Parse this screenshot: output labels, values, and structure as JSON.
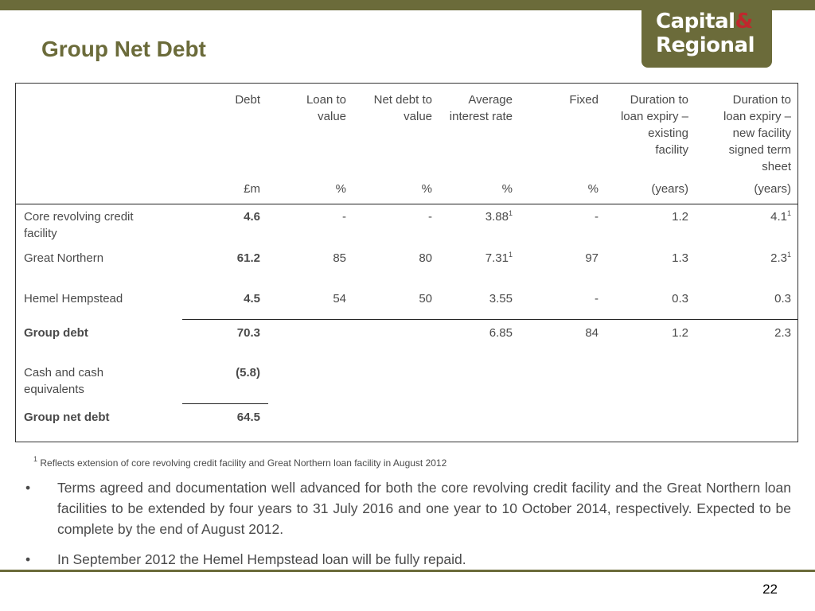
{
  "header": {
    "title": "Group Net Debt",
    "logo": {
      "line1": "Capital",
      "amp": "&",
      "line2": "Regional"
    }
  },
  "table": {
    "columns": [
      {
        "label": "Debt",
        "unit": "£m"
      },
      {
        "label": "Loan to value",
        "unit": "%"
      },
      {
        "label": "Net debt to value",
        "unit": "%"
      },
      {
        "label": "Average interest rate",
        "unit": "%"
      },
      {
        "label": "Fixed",
        "unit": "%"
      },
      {
        "label": "Duration to loan expiry – existing facility",
        "unit": "(years)"
      },
      {
        "label": "Duration to loan expiry – new facility signed term sheet",
        "unit": "(years)"
      }
    ],
    "rows": [
      {
        "label": "Core revolving credit facility",
        "debt": "4.6",
        "ltv": "-",
        "ndv": "-",
        "rate": "3.88",
        "rate_sup": "1",
        "fixed": "-",
        "dur_existing": "1.2",
        "dur_new": "4.1",
        "dur_new_sup": "1"
      },
      {
        "label": "Great Northern",
        "debt": "61.2",
        "ltv": "85",
        "ndv": "80",
        "rate": "7.31",
        "rate_sup": "1",
        "fixed": "97",
        "dur_existing": "1.3",
        "dur_new": "2.3",
        "dur_new_sup": "1"
      },
      {
        "label": "Hemel Hempstead",
        "debt": "4.5",
        "ltv": "54",
        "ndv": "50",
        "rate": "3.55",
        "fixed": "-",
        "dur_existing": "0.3",
        "dur_new": "0.3"
      },
      {
        "label": "Group debt",
        "debt": "70.3",
        "rate": "6.85",
        "fixed": "84",
        "dur_existing": "1.2",
        "dur_new": "2.3"
      },
      {
        "label": "Cash and cash equivalents",
        "debt": "(5.8)"
      },
      {
        "label": "Group net debt",
        "debt": "64.5"
      }
    ]
  },
  "footnote": {
    "marker": "1",
    "text": " Reflects extension of core revolving credit facility and Great Northern loan facility in August 2012"
  },
  "bullets": [
    "Terms agreed and documentation well advanced for both the core revolving credit facility and the Great Northern loan facilities to be extended by four years to 31 July 2016 and one year to 10 October 2014, respectively. Expected to be complete by the end of August 2012.",
    "In September 2012 the Hemel Hempstead loan will be fully repaid."
  ],
  "bullet_symbol": "•",
  "page_number": "22",
  "colors": {
    "brand": "#6b6b3a",
    "accent": "#c0272d",
    "text": "#4a4a4a"
  }
}
